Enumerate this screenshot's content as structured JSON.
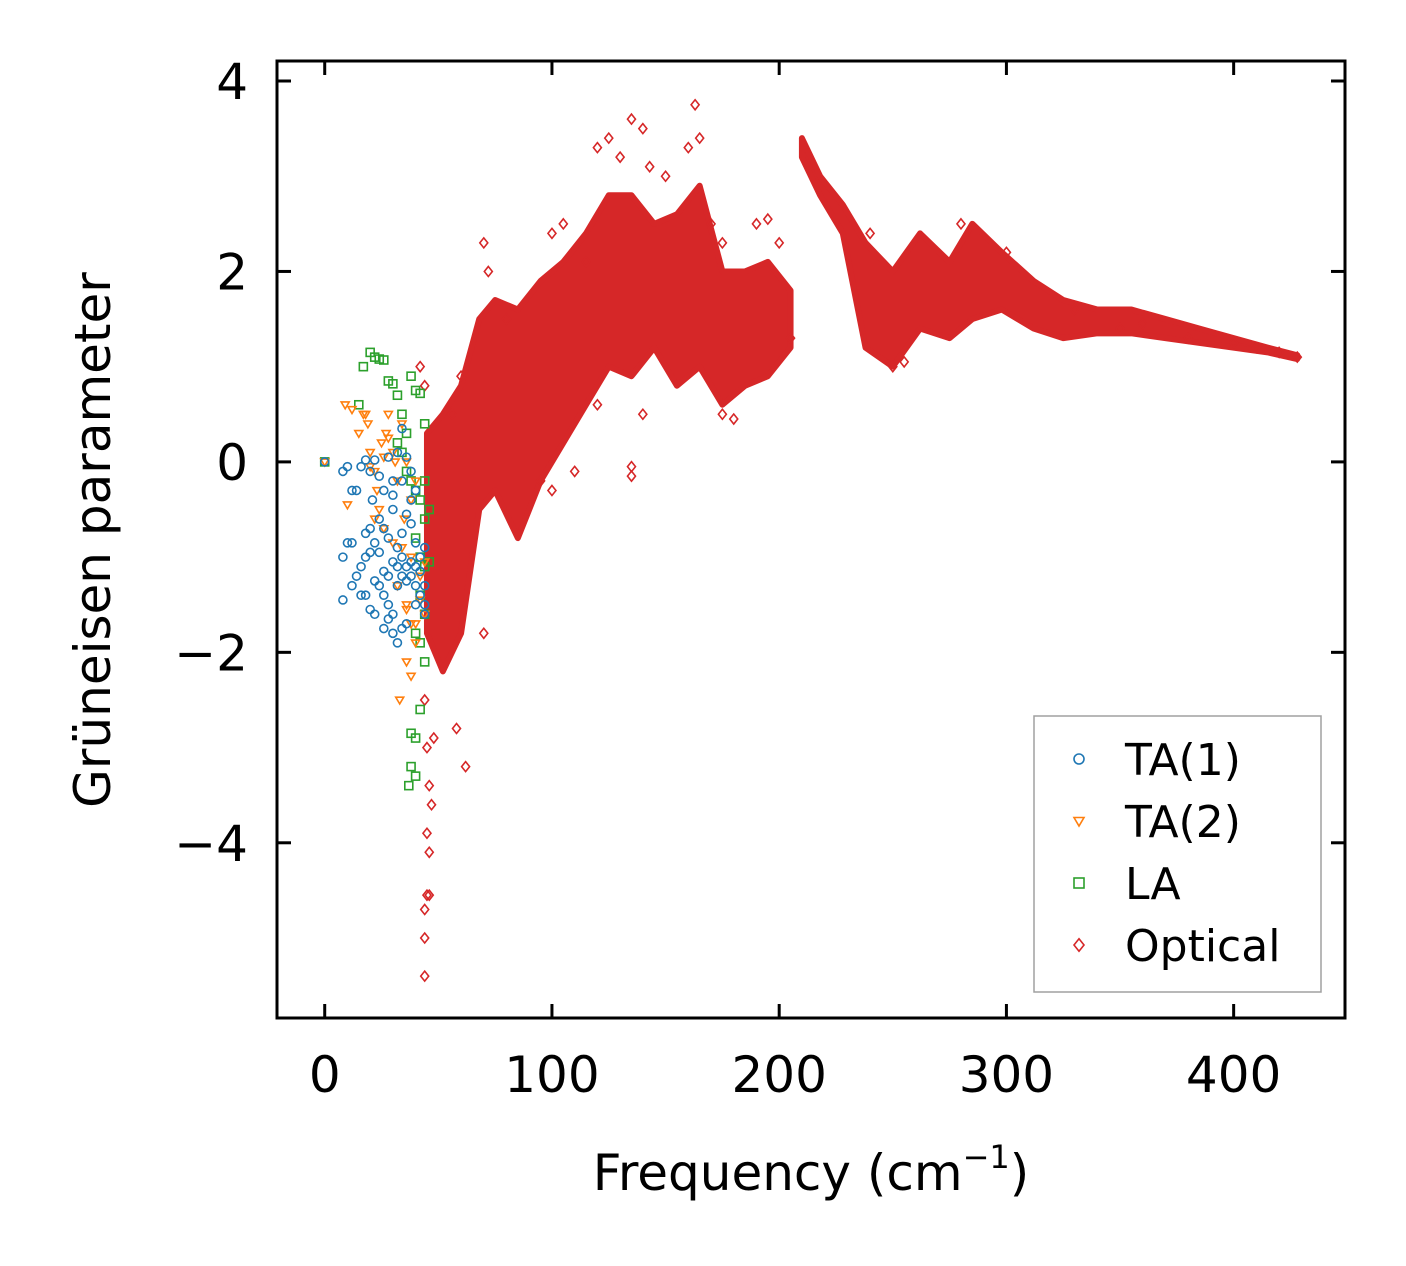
{
  "chart_data": {
    "type": "scatter",
    "title": "",
    "xlabel": "Frequency (cm",
    "xlabel_sup": "−1",
    "xlabel_close": ")",
    "ylabel": "Grüneisen parameter",
    "xlim": [
      -21,
      449
    ],
    "ylim": [
      -5.84,
      4.21
    ],
    "x_ticks": [
      0,
      100,
      200,
      300,
      400
    ],
    "x_tick_labels": [
      "0",
      "100",
      "200",
      "300",
      "400"
    ],
    "y_ticks": [
      -4,
      -2,
      0,
      2,
      4
    ],
    "y_tick_labels": [
      "−4",
      "−2",
      "0",
      "2",
      "4"
    ],
    "grid": false,
    "legend_position": "bottom-right",
    "series": [
      {
        "name": "TA(1)",
        "marker": "circle",
        "color": "#1f77b4",
        "points": [
          [
            0,
            0
          ],
          [
            8,
            -0.1
          ],
          [
            10,
            -0.05
          ],
          [
            12,
            -0.3
          ],
          [
            14,
            -0.3
          ],
          [
            16,
            -0.05
          ],
          [
            18,
            0.02
          ],
          [
            20,
            -0.1
          ],
          [
            21,
            -0.4
          ],
          [
            22,
            0.02
          ],
          [
            24,
            -0.15
          ],
          [
            26,
            -0.3
          ],
          [
            28,
            0.05
          ],
          [
            30,
            -0.2
          ],
          [
            32,
            0.1
          ],
          [
            34,
            0.35
          ],
          [
            36,
            0.05
          ],
          [
            38,
            -0.1
          ],
          [
            8,
            -1.0
          ],
          [
            10,
            -0.85
          ],
          [
            12,
            -0.85
          ],
          [
            14,
            -1.2
          ],
          [
            16,
            -1.1
          ],
          [
            18,
            -1.0
          ],
          [
            20,
            -0.95
          ],
          [
            22,
            -1.25
          ],
          [
            24,
            -1.3
          ],
          [
            26,
            -1.4
          ],
          [
            28,
            -1.5
          ],
          [
            30,
            -1.6
          ],
          [
            32,
            -1.3
          ],
          [
            34,
            -1.2
          ],
          [
            36,
            -1.1
          ],
          [
            38,
            -1.2
          ],
          [
            40,
            -1.3
          ],
          [
            42,
            -1.4
          ],
          [
            44,
            -1.5
          ],
          [
            16,
            -1.4
          ],
          [
            20,
            -1.55
          ],
          [
            26,
            -1.75
          ],
          [
            30,
            -1.8
          ],
          [
            34,
            -1.75
          ],
          [
            8,
            -1.45
          ],
          [
            12,
            -1.3
          ],
          [
            18,
            -1.4
          ],
          [
            22,
            -1.6
          ],
          [
            28,
            -1.65
          ],
          [
            32,
            -1.9
          ],
          [
            36,
            -1.7
          ],
          [
            40,
            -1.5
          ],
          [
            44,
            -1.6
          ],
          [
            24,
            -0.6
          ],
          [
            26,
            -0.7
          ],
          [
            28,
            -0.8
          ],
          [
            30,
            -0.5
          ],
          [
            32,
            -0.9
          ],
          [
            34,
            -0.75
          ],
          [
            36,
            -0.55
          ],
          [
            38,
            -0.65
          ],
          [
            40,
            -0.85
          ],
          [
            42,
            -1.0
          ],
          [
            44,
            -0.9
          ],
          [
            22,
            -0.85
          ],
          [
            24,
            -0.95
          ],
          [
            30,
            -1.05
          ],
          [
            34,
            -1.0
          ],
          [
            38,
            -1.05
          ],
          [
            42,
            -1.15
          ],
          [
            26,
            -1.15
          ],
          [
            28,
            -1.2
          ],
          [
            32,
            -1.1
          ],
          [
            36,
            -1.25
          ],
          [
            40,
            -1.1
          ],
          [
            44,
            -1.3
          ],
          [
            30,
            -0.35
          ],
          [
            34,
            -0.2
          ],
          [
            38,
            -0.4
          ],
          [
            40,
            -0.3
          ],
          [
            20,
            -0.7
          ],
          [
            18,
            -0.75
          ]
        ]
      },
      {
        "name": "TA(2)",
        "marker": "triangle-down",
        "color": "#ff7f0e",
        "points": [
          [
            0,
            0
          ],
          [
            9,
            0.6
          ],
          [
            10,
            -0.45
          ],
          [
            12,
            0.55
          ],
          [
            15,
            0.3
          ],
          [
            17,
            0.5
          ],
          [
            19,
            0.4
          ],
          [
            20,
            0.1
          ],
          [
            22,
            -0.1
          ],
          [
            23,
            -0.3
          ],
          [
            24,
            -0.5
          ],
          [
            25,
            0.2
          ],
          [
            27,
            0.3
          ],
          [
            28,
            0.5
          ],
          [
            30,
            0.1
          ],
          [
            32,
            -0.2
          ],
          [
            34,
            0.4
          ],
          [
            35,
            -0.6
          ],
          [
            36,
            0.0
          ],
          [
            38,
            -0.4
          ],
          [
            40,
            -0.2
          ],
          [
            20,
            -0.05
          ],
          [
            22,
            -0.6
          ],
          [
            26,
            -0.7
          ],
          [
            30,
            -0.85
          ],
          [
            34,
            -0.9
          ],
          [
            38,
            -1.0
          ],
          [
            42,
            -1.2
          ],
          [
            44,
            -1.05
          ],
          [
            32,
            -1.3
          ],
          [
            36,
            -1.5
          ],
          [
            38,
            -1.7
          ],
          [
            40,
            -1.9
          ],
          [
            36,
            -2.1
          ],
          [
            38,
            -2.25
          ],
          [
            33,
            -2.5
          ],
          [
            36,
            -1.55
          ],
          [
            40,
            -1.7
          ],
          [
            42,
            -1.45
          ],
          [
            44,
            -1.6
          ],
          [
            26,
            0.05
          ],
          [
            28,
            0.25
          ],
          [
            18,
            0.5
          ],
          [
            31,
            0.0
          ]
        ]
      },
      {
        "name": "LA",
        "marker": "square",
        "color": "#2ca02c",
        "points": [
          [
            0,
            0
          ],
          [
            15,
            0.6
          ],
          [
            17,
            1.0
          ],
          [
            20,
            1.15
          ],
          [
            22,
            1.1
          ],
          [
            24,
            1.08
          ],
          [
            26,
            1.07
          ],
          [
            28,
            0.85
          ],
          [
            30,
            0.82
          ],
          [
            32,
            0.7
          ],
          [
            34,
            0.5
          ],
          [
            36,
            0.3
          ],
          [
            38,
            0.9
          ],
          [
            40,
            0.75
          ],
          [
            42,
            0.72
          ],
          [
            44,
            0.4
          ],
          [
            32,
            0.2
          ],
          [
            34,
            0.1
          ],
          [
            36,
            -0.1
          ],
          [
            38,
            -0.2
          ],
          [
            40,
            -0.3
          ],
          [
            42,
            -0.4
          ],
          [
            44,
            -0.6
          ],
          [
            40,
            -0.8
          ],
          [
            42,
            -1.0
          ],
          [
            44,
            -1.1
          ],
          [
            46,
            -1.05
          ],
          [
            42,
            -1.4
          ],
          [
            44,
            -1.6
          ],
          [
            40,
            -1.8
          ],
          [
            42,
            -1.9
          ],
          [
            44,
            -2.1
          ],
          [
            42,
            -2.6
          ],
          [
            38,
            -2.85
          ],
          [
            40,
            -2.9
          ],
          [
            38,
            -3.2
          ],
          [
            40,
            -3.3
          ],
          [
            37,
            -3.4
          ],
          [
            44,
            -0.2
          ],
          [
            46,
            -0.5
          ]
        ]
      },
      {
        "name": "Optical",
        "marker": "diamond",
        "color": "#d62728",
        "points": [
          [
            42,
            1.0
          ],
          [
            44,
            0.8
          ],
          [
            44,
            -2.5
          ],
          [
            45,
            -3.0
          ],
          [
            46,
            -3.4
          ],
          [
            45,
            -3.9
          ],
          [
            46,
            -4.1
          ],
          [
            45,
            -4.55
          ],
          [
            44,
            -4.7
          ],
          [
            44,
            -5.0
          ],
          [
            44,
            -5.4
          ],
          [
            46,
            -4.55
          ],
          [
            47,
            -3.6
          ],
          [
            48,
            -2.9
          ],
          [
            60,
            0.9
          ],
          [
            56,
            0.5
          ],
          [
            70,
            2.3
          ],
          [
            72,
            2.0
          ],
          [
            80,
            1.5
          ],
          [
            100,
            2.4
          ],
          [
            105,
            2.5
          ],
          [
            115,
            2.1
          ],
          [
            120,
            3.3
          ],
          [
            125,
            3.4
          ],
          [
            130,
            3.2
          ],
          [
            135,
            3.6
          ],
          [
            140,
            3.5
          ],
          [
            143,
            3.1
          ],
          [
            150,
            3.0
          ],
          [
            160,
            3.3
          ],
          [
            163,
            3.75
          ],
          [
            165,
            3.4
          ],
          [
            170,
            2.5
          ],
          [
            175,
            2.3
          ],
          [
            190,
            2.5
          ],
          [
            195,
            2.55
          ],
          [
            200,
            2.3
          ],
          [
            205,
            1.3
          ],
          [
            135,
            -0.05
          ],
          [
            135,
            -0.15
          ],
          [
            110,
            -0.1
          ],
          [
            100,
            -0.3
          ],
          [
            95,
            -0.2
          ],
          [
            70,
            -1.8
          ],
          [
            62,
            -3.2
          ],
          [
            58,
            -2.8
          ],
          [
            120,
            0.6
          ],
          [
            140,
            0.5
          ],
          [
            180,
            0.45
          ],
          [
            175,
            0.5
          ],
          [
            240,
            2.4
          ],
          [
            250,
            1.0
          ],
          [
            255,
            1.05
          ],
          [
            280,
            2.5
          ],
          [
            300,
            2.2
          ],
          [
            330,
            1.6
          ],
          [
            350,
            1.4
          ],
          [
            360,
            1.45
          ],
          [
            380,
            1.3
          ],
          [
            400,
            1.25
          ],
          [
            410,
            1.2
          ],
          [
            420,
            1.15
          ],
          [
            428,
            1.1
          ]
        ],
        "bands": [
          {
            "x": [
              45,
              52,
              60,
              68,
              75,
              85,
              95,
              105,
              115,
              125,
              135,
              145,
              155,
              165,
              175,
              185,
              195,
              205
            ],
            "upper": [
              0.3,
              0.5,
              0.8,
              1.5,
              1.7,
              1.6,
              1.9,
              2.1,
              2.4,
              2.8,
              2.8,
              2.5,
              2.6,
              2.9,
              2.0,
              2.0,
              2.1,
              1.8
            ],
            "lower": [
              -1.8,
              -2.2,
              -1.8,
              -0.5,
              -0.3,
              -0.8,
              -0.2,
              0.2,
              0.6,
              1.0,
              0.9,
              1.2,
              0.8,
              1.0,
              0.6,
              0.8,
              0.9,
              1.2
            ]
          },
          {
            "x": [
              210,
              218,
              228,
              238,
              250,
              262,
              275,
              285,
              298,
              312,
              325,
              340,
              355,
              370,
              385,
              400,
              415,
              428
            ],
            "upper": [
              3.4,
              3.0,
              2.7,
              2.3,
              2.0,
              2.4,
              2.1,
              2.5,
              2.2,
              1.9,
              1.7,
              1.6,
              1.6,
              1.5,
              1.4,
              1.3,
              1.2,
              1.12
            ],
            "lower": [
              3.2,
              2.8,
              2.4,
              1.2,
              1.0,
              1.4,
              1.3,
              1.5,
              1.6,
              1.4,
              1.3,
              1.35,
              1.35,
              1.3,
              1.25,
              1.2,
              1.15,
              1.08
            ]
          }
        ]
      }
    ]
  }
}
